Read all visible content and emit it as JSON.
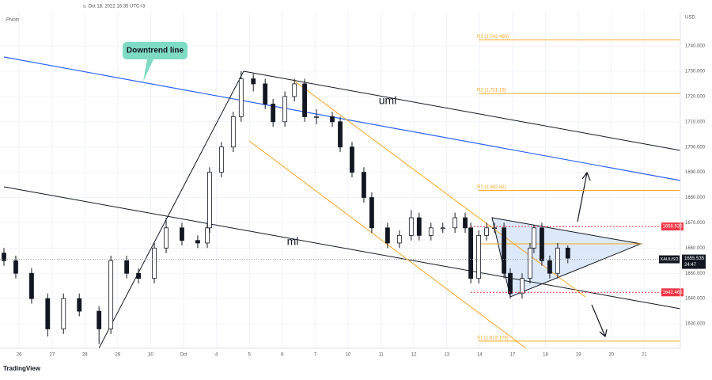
{
  "chart_data": {
    "type": "candlestick",
    "header": "s, Oct 18, 2022 16:35 UTC+3",
    "indicator": "Pivots",
    "currency": "USD",
    "watermark": "TradingView",
    "up_color": "#ffffff",
    "down_color": "#131722",
    "xlim": [
      -0.58,
      20.1
    ],
    "xticks": [
      {
        "value": 0,
        "label": "26"
      },
      {
        "value": 1,
        "label": "27"
      },
      {
        "value": 2,
        "label": "28"
      },
      {
        "value": 3,
        "label": "29"
      },
      {
        "value": 4,
        "label": "30"
      },
      {
        "value": 5,
        "label": "Oct"
      },
      {
        "value": 6,
        "label": "4"
      },
      {
        "value": 7,
        "label": "5"
      },
      {
        "value": 8,
        "label": "6"
      },
      {
        "value": 9,
        "label": "7"
      },
      {
        "value": 10,
        "label": "10"
      },
      {
        "value": 11,
        "label": "11"
      },
      {
        "value": 12,
        "label": "12"
      },
      {
        "value": 13,
        "label": "13"
      },
      {
        "value": 14,
        "label": "14"
      },
      {
        "value": 15,
        "label": "17"
      },
      {
        "value": 16,
        "label": "18"
      },
      {
        "value": 17,
        "label": "19"
      },
      {
        "value": 18,
        "label": "20"
      },
      {
        "value": 19,
        "label": "21"
      }
    ],
    "ylim": [
      1620.3,
      1753.5
    ],
    "yticks": [
      {
        "value": 1630,
        "label": "1630.000"
      },
      {
        "value": 1640,
        "label": "1640.000"
      },
      {
        "value": 1650,
        "label": "1650.000"
      },
      {
        "value": 1660,
        "label": "1660.000"
      },
      {
        "value": 1670,
        "label": "1670.000"
      },
      {
        "value": 1680,
        "label": "1680.000"
      },
      {
        "value": 1690,
        "label": "1690.000"
      },
      {
        "value": 1700,
        "label": "1700.000"
      },
      {
        "value": 1710,
        "label": "1710.000"
      },
      {
        "value": 1720,
        "label": "1720.000"
      },
      {
        "value": 1730,
        "label": "1730.000"
      },
      {
        "value": 1740,
        "label": "1740.000"
      }
    ],
    "x": [
      -0.46,
      -0.1,
      0.38,
      0.87,
      1.35,
      1.83,
      2.43,
      2.79,
      3.27,
      3.63,
      4.11,
      4.47,
      4.95,
      5.43,
      5.72,
      5.79,
      6.15,
      6.51,
      6.75,
      7.12,
      7.48,
      7.72,
      8.08,
      8.37,
      8.68,
      9.04,
      9.52,
      9.76,
      10.12,
      10.48,
      10.72,
      11.2,
      11.56,
      11.92,
      12.16,
      12.52,
      12.88,
      13.25,
      13.56,
      13.73,
      13.97,
      14.21,
      14.45,
      14.74,
      14.93,
      15.29,
      15.53,
      15.65,
      15.89,
      16.13,
      16.37,
      16.68
    ],
    "open": [
      1658,
      1655,
      1650,
      1640,
      1628,
      1640,
      1635,
      1628,
      1655,
      1650,
      1648,
      1660,
      1668,
      1663,
      1662,
      1668,
      1690,
      1700,
      1712,
      1727,
      1725,
      1717,
      1710,
      1720,
      1725,
      1712,
      1712,
      1710,
      1700,
      1690,
      1680,
      1668,
      1662,
      1665,
      1672,
      1665,
      1668,
      1668,
      1672,
      1668,
      1648,
      1665,
      1668,
      1668,
      1650,
      1642,
      1648,
      1660,
      1668,
      1655,
      1650,
      1660
    ],
    "high": [
      1660,
      1657,
      1652,
      1642,
      1642,
      1642,
      1637,
      1657,
      1657,
      1652,
      1662,
      1672,
      1670,
      1665,
      1670,
      1692,
      1702,
      1714,
      1730,
      1729,
      1727,
      1719,
      1722,
      1727,
      1727,
      1715,
      1714,
      1712,
      1702,
      1692,
      1682,
      1670,
      1667,
      1675,
      1674,
      1670,
      1670,
      1674,
      1674,
      1670,
      1667,
      1670,
      1670,
      1670,
      1652,
      1650,
      1662,
      1669,
      1670,
      1657,
      1662,
      1661
    ],
    "low": [
      1653,
      1648,
      1638,
      1625,
      1626,
      1633,
      1622,
      1626,
      1648,
      1646,
      1646,
      1658,
      1661,
      1660,
      1660,
      1666,
      1688,
      1698,
      1710,
      1722,
      1715,
      1708,
      1708,
      1718,
      1710,
      1709,
      1708,
      1698,
      1688,
      1678,
      1666,
      1660,
      1660,
      1663,
      1663,
      1663,
      1666,
      1666,
      1666,
      1646,
      1646,
      1663,
      1666,
      1648,
      1640,
      1640,
      1646,
      1658,
      1653,
      1648,
      1648,
      1654
    ],
    "close": [
      1655,
      1650,
      1640,
      1628,
      1640,
      1635,
      1628,
      1655,
      1650,
      1648,
      1660,
      1668,
      1663,
      1662,
      1668,
      1690,
      1700,
      1712,
      1727,
      1725,
      1717,
      1710,
      1720,
      1725,
      1712,
      1712,
      1710,
      1700,
      1690,
      1680,
      1668,
      1662,
      1665,
      1672,
      1665,
      1668,
      1668,
      1672,
      1668,
      1648,
      1665,
      1668,
      1668,
      1650,
      1642,
      1648,
      1660,
      1668,
      1655,
      1650,
      1660,
      1656
    ],
    "pivots": [
      {
        "label": "R3 (1,742.465)",
        "value": 1742.465
      },
      {
        "label": "R2 (1,721.19)",
        "value": 1721.19
      },
      {
        "label": "R1 (1,682.82)",
        "value": 1682.82
      },
      {
        "label": "S1 (1,623.175)",
        "value": 1623.175
      }
    ],
    "pivot_color": "#f5a623",
    "price_lines": [
      {
        "label": "1668.530",
        "value": 1668.53
      },
      {
        "label": "1642.465",
        "value": 1642.465
      }
    ],
    "price_line_color": "#f23645",
    "last_price": {
      "label": "1655.535",
      "value": 1655.535,
      "countdown": "24:47",
      "symbol": "XAUUSD"
    },
    "annotations": {
      "downtrend": "Downtrend line",
      "upper": "uml",
      "median": "ml"
    }
  }
}
